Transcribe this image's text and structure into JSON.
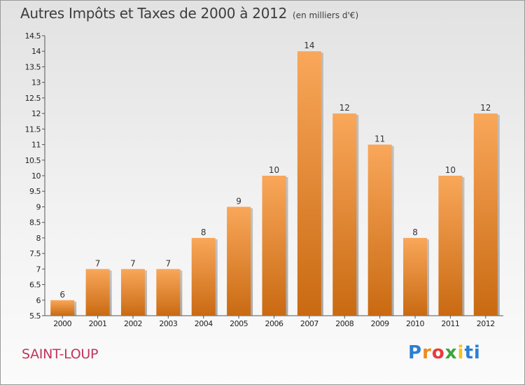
{
  "chart_data": {
    "type": "bar",
    "title": "Autres Impôts et Taxes de 2000 à 2012",
    "subtitle": "(en milliers d'€)",
    "categories": [
      "2000",
      "2001",
      "2002",
      "2003",
      "2004",
      "2005",
      "2006",
      "2007",
      "2008",
      "2009",
      "2010",
      "2011",
      "2012"
    ],
    "values": [
      6,
      7,
      7,
      7,
      8,
      9,
      10,
      14,
      12,
      11,
      8,
      10,
      12
    ],
    "data_labels": [
      "6",
      "7",
      "7",
      "7",
      "8",
      "9",
      "10",
      "14",
      "12",
      "11",
      "8",
      "10",
      "12"
    ],
    "ylim": [
      5.5,
      14.5
    ],
    "y_ticks": [
      5.5,
      6,
      6.5,
      7,
      7.5,
      8,
      8.5,
      9,
      9.5,
      10,
      10.5,
      11,
      11.5,
      12,
      12.5,
      13,
      13.5,
      14,
      14.5
    ],
    "y_tick_labels": [
      "5.5",
      "6",
      "6.5",
      "7",
      "7.5",
      "8",
      "8.5",
      "9",
      "9.5",
      "10",
      "10.5",
      "11",
      "11.5",
      "12",
      "12.5",
      "13",
      "13.5",
      "14",
      "14.5"
    ],
    "xlabel": "",
    "ylabel": "",
    "grid": false,
    "bar_color_top": "#f9a75a",
    "bar_color_bottom": "#c96a12"
  },
  "place_name": "SAINT-LOUP",
  "logo": {
    "letters": [
      "P",
      "r",
      "o",
      "x",
      "i",
      "ti"
    ],
    "colors": [
      "#2b7fd4",
      "#f08a1c",
      "#e73b3b",
      "#3aa53a",
      "#f4c21e",
      "#2b7fd4"
    ]
  }
}
